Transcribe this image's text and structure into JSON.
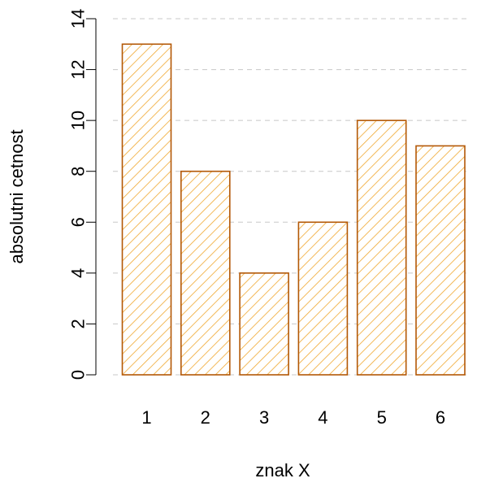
{
  "chart_data": {
    "type": "bar",
    "title": "",
    "xlabel": "znak X",
    "ylabel": "absolutni cetnost",
    "categories": [
      "1",
      "2",
      "3",
      "4",
      "5",
      "6"
    ],
    "values": [
      13,
      8,
      4,
      6,
      10,
      9
    ],
    "ylim": [
      0,
      14
    ],
    "yticks": [
      0,
      2,
      4,
      6,
      8,
      10,
      12,
      14
    ],
    "ytick_labels": [
      "0",
      "2",
      "4",
      "6",
      "8",
      "10",
      "12",
      "14"
    ],
    "grid": "horizontal dashed",
    "legend": "none",
    "fill_pattern": "diagonal hatch",
    "colors": {
      "bar_stroke": "#B35806",
      "hatch": "#F0A830",
      "grid": "#C8C8C8",
      "axis": "#000000"
    }
  }
}
